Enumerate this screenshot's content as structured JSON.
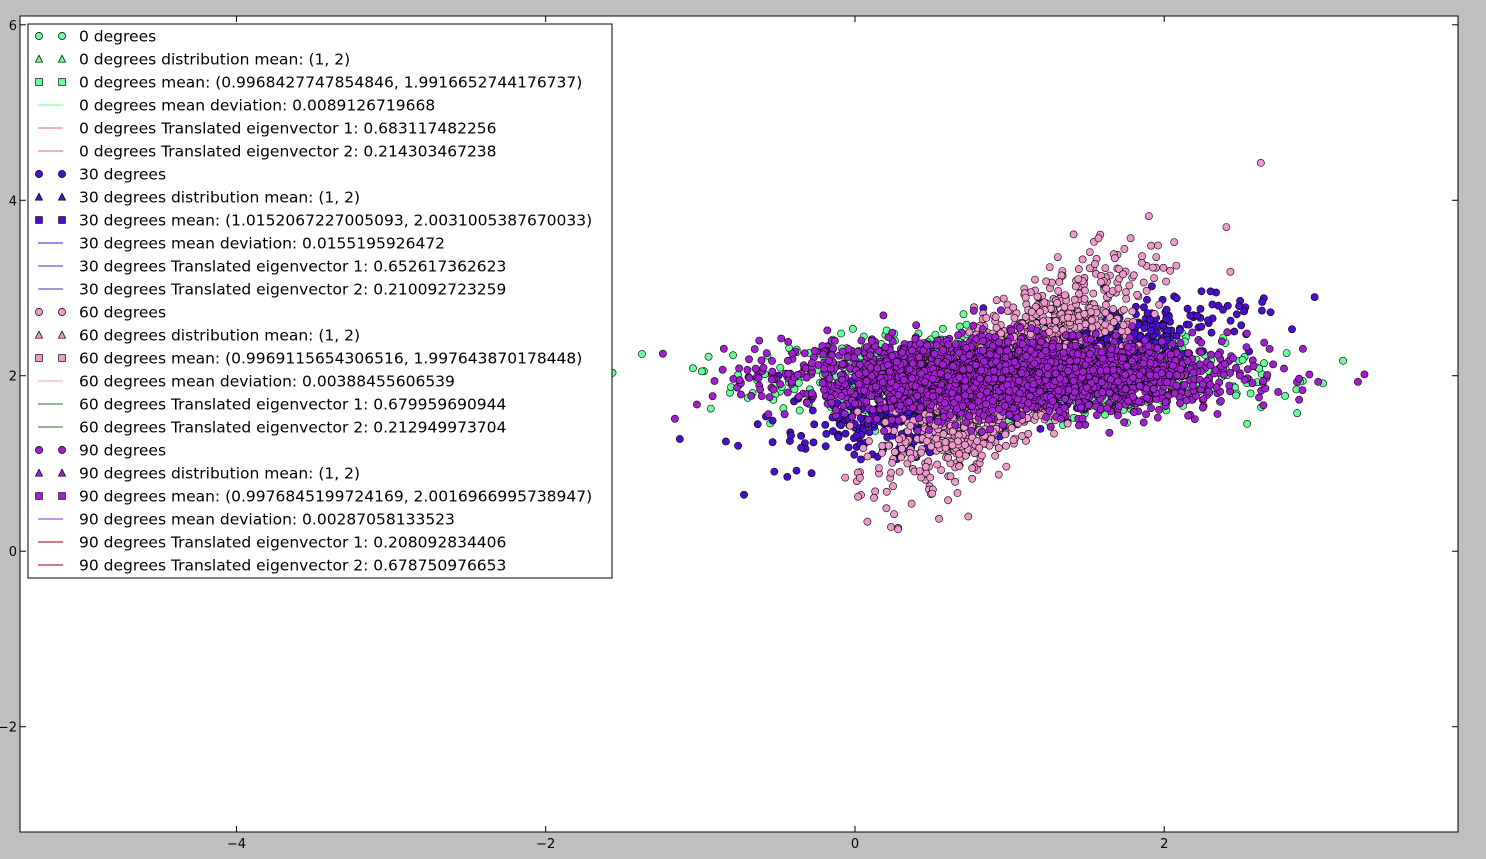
{
  "chart_data": {
    "type": "scatter",
    "title": "",
    "xlabel": "",
    "ylabel": "",
    "xlim": [
      -5.4,
      3.9
    ],
    "ylim": [
      -3.2,
      6.1
    ],
    "xticks": [
      -4,
      -2,
      0,
      2
    ],
    "yticks": [
      -2,
      0,
      2,
      4,
      6
    ],
    "xtick_labels": [
      "−4",
      "−2",
      "0",
      "2"
    ],
    "ytick_labels": [
      "−2",
      "0",
      "2",
      "4",
      "6"
    ],
    "grid": false,
    "legend_position": "top-left",
    "series": [
      {
        "group": "0 degrees",
        "color": "#66ff99",
        "points_per_series": 1400,
        "legend": [
          {
            "marker": "circle",
            "label": "0 degrees"
          },
          {
            "marker": "triangle",
            "label": "0 degrees distribution mean: (1, 2)"
          },
          {
            "marker": "square",
            "label": "0 degrees mean: (0.9968427747854846, 1.9916652744176737)"
          },
          {
            "marker": "line",
            "line_color": "#66ff99",
            "label": "0 degrees mean deviation: 0.0089126719668"
          },
          {
            "marker": "line",
            "line_color": "#d46a6a",
            "label": "0 degrees Translated eigenvector 1: 0.683117482256"
          },
          {
            "marker": "line",
            "line_color": "#d46a6a",
            "label": "0 degrees Translated eigenvector 2: 0.214303467238"
          }
        ],
        "cluster": {
          "mean": [
            1.0,
            2.0
          ],
          "eig1": 0.683117482256,
          "eig2": 0.214303467238,
          "angle_deg": 0
        }
      },
      {
        "group": "30 degrees",
        "color": "#4b0fcc",
        "points_per_series": 1400,
        "legend": [
          {
            "marker": "circle",
            "label": "30 degrees"
          },
          {
            "marker": "triangle",
            "label": "30 degrees distribution mean: (1, 2)"
          },
          {
            "marker": "square",
            "label": "30 degrees mean: (1.0152067227005093, 2.0031005387670033)"
          },
          {
            "marker": "line",
            "line_color": "#4b0fcc",
            "label": "30 degrees mean deviation: 0.0155195926472"
          },
          {
            "marker": "line",
            "line_color": "#3a3aa0",
            "label": "30 degrees Translated eigenvector 1: 0.652617362623"
          },
          {
            "marker": "line",
            "line_color": "#3a3aa0",
            "label": "30 degrees Translated eigenvector 2: 0.210092723259"
          }
        ],
        "cluster": {
          "mean": [
            1.0,
            2.0
          ],
          "eig1": 0.652617362623,
          "eig2": 0.210092723259,
          "angle_deg": 30
        }
      },
      {
        "group": "60 degrees",
        "color": "#ee99cc",
        "points_per_series": 1400,
        "legend": [
          {
            "marker": "circle",
            "label": "60 degrees"
          },
          {
            "marker": "triangle",
            "label": "60 degrees distribution mean: (1, 2)"
          },
          {
            "marker": "square",
            "label": "60 degrees mean: (0.9969115654306516, 1.997643870178448)"
          },
          {
            "marker": "line",
            "line_color": "#ee99cc",
            "label": "60 degrees mean deviation: 0.00388455606539"
          },
          {
            "marker": "line",
            "line_color": "#2e6b2e",
            "label": "60 degrees Translated eigenvector 1: 0.679959690944"
          },
          {
            "marker": "line",
            "line_color": "#2e6b2e",
            "label": "60 degrees Translated eigenvector 2: 0.212949973704"
          }
        ],
        "cluster": {
          "mean": [
            1.0,
            2.0
          ],
          "eig1": 0.679959690944,
          "eig2": 0.212949973704,
          "angle_deg": 60
        }
      },
      {
        "group": "90 degrees",
        "color": "#a020d0",
        "points_per_series": 2400,
        "legend": [
          {
            "marker": "circle",
            "label": "90 degrees"
          },
          {
            "marker": "triangle",
            "label": "90 degrees distribution mean: (1, 2)"
          },
          {
            "marker": "square",
            "label": "90 degrees mean: (0.9976845199724169, 2.0016966995738947)"
          },
          {
            "marker": "line",
            "line_color": "#a020d0",
            "label": "90 degrees mean deviation: 0.00287058133523"
          },
          {
            "marker": "line",
            "line_color": "#8b0000",
            "label": "90 degrees Translated eigenvector 1: 0.208092834406"
          },
          {
            "marker": "line",
            "line_color": "#8b0000",
            "label": "90 degrees Translated eigenvector 2: 0.678750976653"
          }
        ],
        "cluster": {
          "mean": [
            1.0,
            2.0
          ],
          "eig1": 0.208092834406,
          "eig2": 0.678750976653,
          "angle_deg": 90
        }
      }
    ]
  }
}
